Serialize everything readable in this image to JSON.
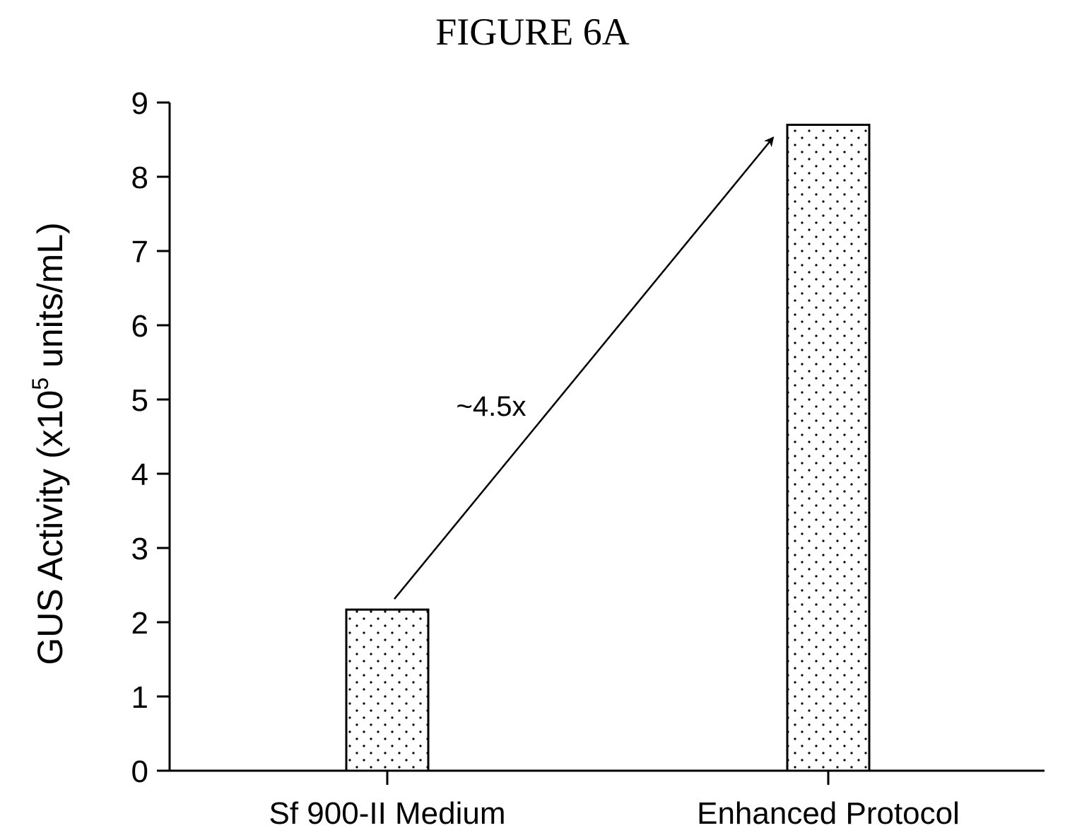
{
  "figure": {
    "title": "FIGURE 6A"
  },
  "chart_data": {
    "type": "bar",
    "categories": [
      "Sf 900-II Medium",
      "Enhanced Protocol"
    ],
    "values": [
      2.17,
      8.7
    ],
    "xlabel": "",
    "ylabel": {
      "prefix": "GUS Activity (x10",
      "superscript": "5",
      "suffix": " units/mL)"
    },
    "ylim": [
      0,
      9
    ],
    "yticks": [
      "0",
      "1",
      "2",
      "3",
      "4",
      "5",
      "6",
      "7",
      "8",
      "9"
    ],
    "grid": false,
    "legend": "none",
    "bar_fill": "dotted",
    "annotation": {
      "text": "~4.5x",
      "from_category": 0,
      "to_category": 1
    }
  }
}
